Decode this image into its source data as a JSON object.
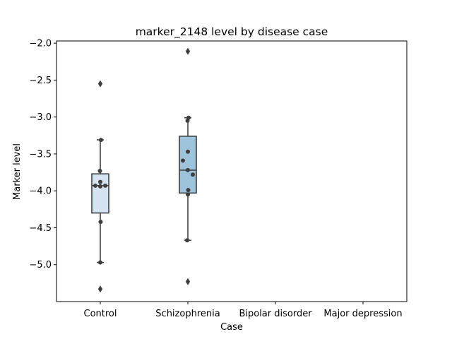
{
  "chart_data": {
    "type": "box",
    "title": "marker_2148 level by disease case",
    "xlabel": "Case",
    "ylabel": "Marker level",
    "categories": [
      "Control",
      "Schizophrenia",
      "Bipolar disorder",
      "Major depression"
    ],
    "ylim": [
      -5.5,
      -1.97
    ],
    "yticks": [
      -2.0,
      -2.5,
      -3.0,
      -3.5,
      -4.0,
      -4.5,
      -5.0
    ],
    "ytick_labels": [
      "−2.0",
      "−2.5",
      "−3.0",
      "−3.5",
      "−4.0",
      "−4.5",
      "−5.0"
    ],
    "grid": false,
    "legend": "none",
    "boxes": [
      {
        "category": "Control",
        "color": "#d6e4f2",
        "whisker_low": -4.97,
        "q1": -4.3,
        "median": -3.93,
        "q3": -3.77,
        "whisker_high": -3.31,
        "outliers": [
          -2.55,
          -5.33
        ],
        "points": [
          -3.31,
          -3.73,
          -3.88,
          -3.93,
          -3.94,
          -3.93,
          -4.42,
          -4.97
        ]
      },
      {
        "category": "Schizophrenia",
        "color": "#9dc3dd",
        "whisker_low": -4.67,
        "q1": -4.03,
        "median": -3.72,
        "q3": -3.26,
        "whisker_high": -3.01,
        "outliers": [
          -2.11,
          -5.23
        ],
        "points": [
          -3.01,
          -3.05,
          -3.47,
          -3.59,
          -3.72,
          -3.78,
          -3.99,
          -4.05,
          -4.67
        ]
      }
    ]
  }
}
